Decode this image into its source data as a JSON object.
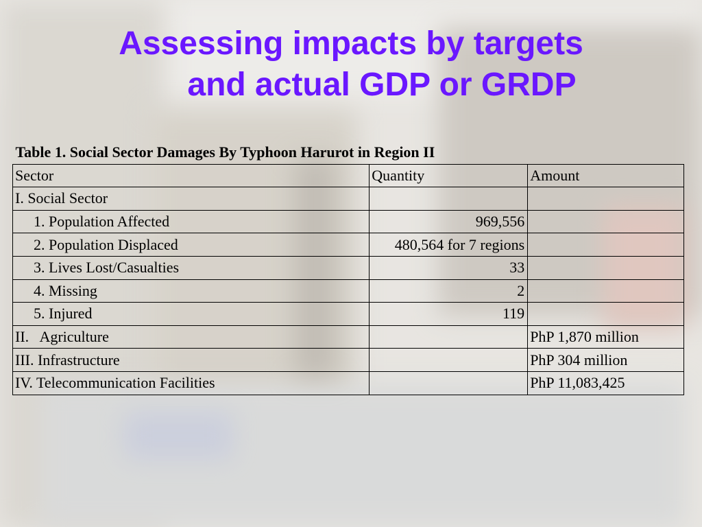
{
  "title": {
    "line1": "Assessing impacts by targets",
    "line2": "and actual GDP or GRDP"
  },
  "table": {
    "caption": "Table 1. Social Sector Damages By Typhoon Harurot in Region II",
    "headers": [
      "Sector",
      "Quantity",
      "Amount"
    ],
    "rows": [
      {
        "sector": "I. Social Sector",
        "quantity": "",
        "amount": ""
      },
      {
        "sector": "1. Population Affected",
        "quantity": "969,556",
        "amount": ""
      },
      {
        "sector": "2. Population Displaced",
        "quantity": "480,564 for 7 regions",
        "amount": ""
      },
      {
        "sector": "3. Lives Lost/Casualties",
        "quantity": "33",
        "amount": ""
      },
      {
        "sector": "4. Missing",
        "quantity": "2",
        "amount": ""
      },
      {
        "sector": "5. Injured",
        "quantity": "119",
        "amount": ""
      },
      {
        "sector": "II.   Agriculture",
        "quantity": "",
        "amount": "PhP 1,870 million"
      },
      {
        "sector": "III. Infrastructure",
        "quantity": "",
        "amount": "PhP 304 million"
      },
      {
        "sector": "IV. Telecommunication Facilities",
        "quantity": "",
        "amount": "PhP 11,083,425"
      }
    ]
  },
  "colors": {
    "title": "#6a17ff",
    "text": "#000000"
  }
}
